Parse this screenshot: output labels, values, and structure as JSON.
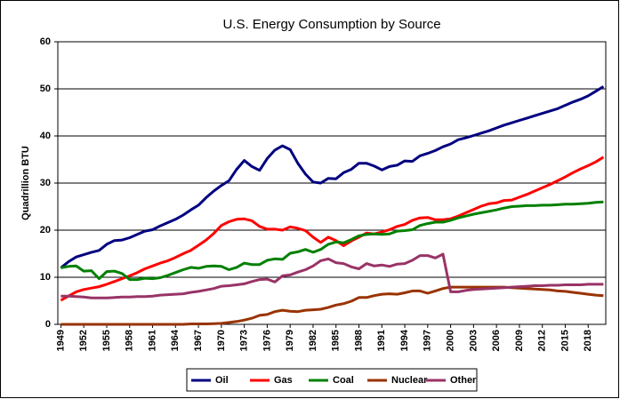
{
  "chart_data": {
    "type": "line",
    "title": "U.S. Energy Consumption by Source",
    "y_label": "Quadrillion BTU",
    "x": [
      1949,
      1950,
      1951,
      1952,
      1953,
      1954,
      1955,
      1956,
      1957,
      1958,
      1959,
      1960,
      1961,
      1962,
      1963,
      1964,
      1965,
      1966,
      1967,
      1968,
      1969,
      1970,
      1971,
      1972,
      1973,
      1974,
      1975,
      1976,
      1977,
      1978,
      1979,
      1980,
      1981,
      1982,
      1983,
      1984,
      1985,
      1986,
      1987,
      1988,
      1989,
      1990,
      1991,
      1992,
      1993,
      1994,
      1995,
      1996,
      1997,
      1998,
      1999,
      2000,
      2001,
      2002,
      2003,
      2004,
      2005,
      2006,
      2007,
      2008,
      2009,
      2010,
      2011,
      2012,
      2013,
      2014,
      2015,
      2016,
      2017,
      2018,
      2019,
      2020
    ],
    "xlim": [
      1948.6,
      2020.3
    ],
    "xticks": [
      1949,
      1952,
      1955,
      1958,
      1961,
      1964,
      1967,
      1970,
      1973,
      1976,
      1979,
      1982,
      1985,
      1988,
      1991,
      1994,
      1997,
      2000,
      2003,
      2006,
      2009,
      2012,
      2015,
      2018
    ],
    "ylim": [
      0,
      60
    ],
    "yticks": [
      0,
      10,
      20,
      30,
      40,
      50,
      60
    ],
    "grid": true,
    "legend": "bottom",
    "series": [
      {
        "name": "Oil",
        "color": "#000080",
        "values": [
          12,
          13.3,
          14.3,
          14.8,
          15.3,
          15.7,
          17,
          17.8,
          17.9,
          18.4,
          19.1,
          19.8,
          20.1,
          20.9,
          21.6,
          22.3,
          23.2,
          24.3,
          25.3,
          26.9,
          28.3,
          29.5,
          30.5,
          32.9,
          34.8,
          33.5,
          32.7,
          35.2,
          37,
          37.9,
          37.1,
          34.2,
          31.9,
          30.2,
          30,
          31,
          30.9,
          32.2,
          32.9,
          34.2,
          34.2,
          33.6,
          32.8,
          33.5,
          33.8,
          34.7,
          34.6,
          35.8,
          36.3,
          36.9,
          37.7,
          38.3,
          39.2,
          39.6,
          40.1,
          40.6,
          41.1,
          41.7,
          42.3,
          42.8,
          43.3,
          43.8,
          44.3,
          44.8,
          45.3,
          45.8,
          46.5,
          47.2,
          47.8,
          48.5,
          49.5,
          50.5
        ]
      },
      {
        "name": "Gas",
        "color": "#ff0000",
        "values": [
          5.1,
          6,
          6.9,
          7.4,
          7.7,
          8,
          8.5,
          9.1,
          9.7,
          10.3,
          11,
          11.8,
          12.4,
          13,
          13.5,
          14.2,
          15,
          15.7,
          16.8,
          17.9,
          19.3,
          21,
          21.8,
          22.3,
          22.4,
          22,
          20.8,
          20.2,
          20.2,
          20,
          20.7,
          20.4,
          19.9,
          18.5,
          17.4,
          18.5,
          17.8,
          16.7,
          17.7,
          18.5,
          19.4,
          19.2,
          19.6,
          20.1,
          20.8,
          21.2,
          22.1,
          22.6,
          22.7,
          22.2,
          22.2,
          22.4,
          23,
          23.7,
          24.4,
          25.1,
          25.6,
          25.8,
          26.3,
          26.4,
          27,
          27.6,
          28.3,
          29,
          29.7,
          30.5,
          31.3,
          32.2,
          33,
          33.7,
          34.5,
          35.5
        ]
      },
      {
        "name": "Coal",
        "color": "#008000",
        "values": [
          12,
          12.3,
          12.4,
          11.3,
          11.4,
          9.7,
          11.2,
          11.3,
          10.8,
          9.5,
          9.5,
          9.8,
          9.7,
          9.9,
          10.4,
          11,
          11.6,
          12.1,
          11.9,
          12.3,
          12.4,
          12.3,
          11.6,
          12.1,
          13,
          12.7,
          12.7,
          13.6,
          13.9,
          13.8,
          15.1,
          15.4,
          15.9,
          15.3,
          15.9,
          17,
          17.5,
          17.3,
          18,
          18.8,
          19.1,
          19.2,
          19.1,
          19.2,
          19.8,
          19.9,
          20.1,
          21,
          21.4,
          21.7,
          21.7,
          22.1,
          22.6,
          23,
          23.4,
          23.7,
          24,
          24.3,
          24.7,
          25,
          25.1,
          25.2,
          25.2,
          25.3,
          25.3,
          25.4,
          25.5,
          25.5,
          25.6,
          25.7,
          25.9,
          26
        ]
      },
      {
        "name": "Nuclear",
        "color": "#993300",
        "values": [
          0,
          0,
          0,
          0,
          0,
          0,
          0,
          0,
          0,
          0,
          0,
          0,
          0,
          0,
          0,
          0,
          0,
          0.1,
          0.1,
          0.1,
          0.15,
          0.2,
          0.4,
          0.6,
          0.9,
          1.3,
          1.9,
          2.1,
          2.7,
          3,
          2.8,
          2.7,
          3,
          3.1,
          3.2,
          3.6,
          4.1,
          4.4,
          4.9,
          5.7,
          5.7,
          6.1,
          6.4,
          6.5,
          6.4,
          6.7,
          7.1,
          7.1,
          6.6,
          7.1,
          7.6,
          7.9,
          7.9,
          7.9,
          7.9,
          7.9,
          7.9,
          7.9,
          7.9,
          7.8,
          7.7,
          7.6,
          7.5,
          7.4,
          7.3,
          7.1,
          7,
          6.8,
          6.6,
          6.4,
          6.2,
          6.1
        ]
      },
      {
        "name": "Other",
        "color": "#993366",
        "values": [
          6,
          6,
          5.9,
          5.8,
          5.6,
          5.6,
          5.6,
          5.7,
          5.8,
          5.8,
          5.9,
          5.9,
          6,
          6.2,
          6.3,
          6.4,
          6.5,
          6.8,
          7,
          7.3,
          7.6,
          8.1,
          8.2,
          8.4,
          8.6,
          9.1,
          9.5,
          9.6,
          9,
          10.3,
          10.5,
          11.1,
          11.6,
          12.4,
          13.5,
          13.9,
          13.1,
          12.9,
          12.2,
          11.8,
          12.9,
          12.4,
          12.6,
          12.3,
          12.8,
          12.9,
          13.6,
          14.6,
          14.6,
          14.1,
          14.9,
          6.9,
          6.9,
          7.2,
          7.4,
          7.5,
          7.6,
          7.7,
          7.8,
          7.9,
          8,
          8.1,
          8.2,
          8.2,
          8.3,
          8.3,
          8.4,
          8.4,
          8.4,
          8.5,
          8.5,
          8.5
        ]
      }
    ]
  }
}
